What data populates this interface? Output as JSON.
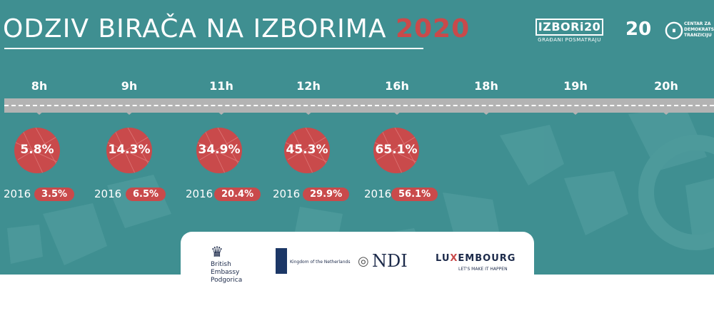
{
  "title": {
    "main": "ODZIV BIRAČA NA IZBORIMA",
    "year": "2020"
  },
  "logos": {
    "izbori": "IZBORi20",
    "izbori_sub": "GRAĐANI POSMATRAJU",
    "twenty": "20",
    "cdt_icon": "cdt-icon",
    "cdt_text": "CENTAR ZA DEMOKRATSKU TRANZICIJU"
  },
  "hours": [
    "8h",
    "9h",
    "11h",
    "12h",
    "16h",
    "18h",
    "19h",
    "20h"
  ],
  "turnout": [
    {
      "value": "5.8%",
      "year": "2016",
      "prev": "3.5%"
    },
    {
      "value": "14.3%",
      "year": "2016",
      "prev": "6.5%"
    },
    {
      "value": "34.9%",
      "year": "2016",
      "prev": "20.4%"
    },
    {
      "value": "45.3%",
      "year": "2016",
      "prev": "29.9%"
    },
    {
      "value": "65.1%",
      "year": "2016",
      "prev": "56.1%"
    }
  ],
  "sponsors": {
    "british": "British Embassy Podgorica",
    "netherlands": "Kingdom of the Netherlands",
    "ndi": "NDI",
    "lux_a": "LU",
    "lux_x": "X",
    "lux_b": "EMBOURG",
    "lux_sub": "LET'S MAKE IT HAPPEN"
  },
  "colors": {
    "teal": "#3f8f91",
    "red": "#c94a4b",
    "timeline": "#b3b3b3"
  }
}
